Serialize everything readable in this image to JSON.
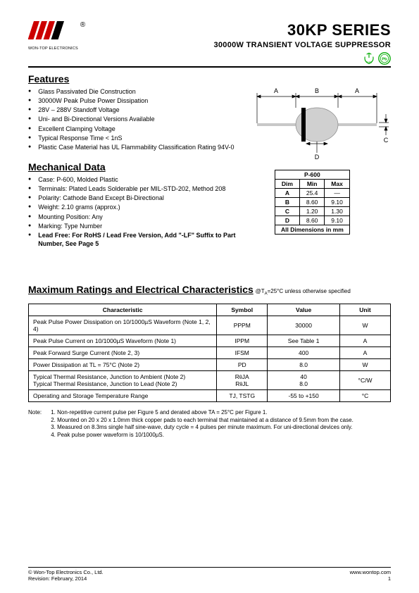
{
  "header": {
    "company": "WON-TOP ELECTRONICS",
    "series": "30KP SERIES",
    "subtitle": "30000W TRANSIENT VOLTAGE SUPPRESSOR",
    "rohs_label": "RoHS",
    "pb_label": "Pb"
  },
  "features": {
    "title": "Features",
    "items": [
      "Glass Passivated Die Construction",
      "30000W Peak Pulse Power Dissipation",
      "28V – 288V Standoff Voltage",
      "Uni- and Bi-Directional Versions Available",
      "Excellent Clamping Voltage",
      "Typical Response Time < 1nS",
      "Plastic Case Material has UL Flammability Classification Rating 94V-0"
    ]
  },
  "mechanical": {
    "title": "Mechanical Data",
    "items": [
      "Case: P-600, Molded Plastic",
      "Terminals: Plated Leads Solderable per MIL-STD-202, Method 208",
      "Polarity: Cathode Band Except Bi-Directional",
      "Weight: 2.10 grams (approx.)",
      "Mounting Position: Any",
      "Marking: Type Number"
    ],
    "leadfree": "Lead Free: For RoHS / Lead Free Version, Add \"-LF\" Suffix to Part Number, See Page 5"
  },
  "dimensions": {
    "package": "P-600",
    "headers": [
      "Dim",
      "Min",
      "Max"
    ],
    "rows": [
      [
        "A",
        "25.4",
        "—"
      ],
      [
        "B",
        "8.60",
        "9.10"
      ],
      [
        "C",
        "1.20",
        "1.30"
      ],
      [
        "D",
        "8.60",
        "9.10"
      ]
    ],
    "footer": "All Dimensions in mm"
  },
  "diagram": {
    "labels": [
      "A",
      "B",
      "A",
      "C",
      "D"
    ],
    "body_color": "#d0d0d0",
    "band_color": "#000000",
    "lead_color": "#c8c8c8",
    "arrow_color": "#000000"
  },
  "maxratings": {
    "title": "Maximum Ratings and Electrical Characteristics",
    "condition": "@TA=25°C unless otherwise specified",
    "headers": [
      "Characteristic",
      "Symbol",
      "Value",
      "Unit"
    ],
    "rows": [
      {
        "char": "Peak Pulse Power Dissipation on 10/1000µS Waveform (Note 1, 2, 4)",
        "sym": "PPPM",
        "val": "30000",
        "unit": "W"
      },
      {
        "char": "Peak Pulse Current on 10/1000µS Waveform (Note 1)",
        "sym": "IPPM",
        "val": "See Table 1",
        "unit": "A"
      },
      {
        "char": "Peak Forward Surge Current (Note 2, 3)",
        "sym": "IFSM",
        "val": "400",
        "unit": "A"
      },
      {
        "char": "Power Dissipation at TL = 75°C (Note 2)",
        "sym": "PD",
        "val": "8.0",
        "unit": "W"
      },
      {
        "char": "Typical Thermal Resistance, Junction to Ambient (Note 2)\nTypical Thermal Resistance, Junction to Lead (Note 2)",
        "sym": "RθJA\nRθJL",
        "val": "40\n8.0",
        "unit": "°C/W"
      },
      {
        "char": "Operating and Storage Temperature Range",
        "sym": "TJ, TSTG",
        "val": "-55 to +150",
        "unit": "°C"
      }
    ]
  },
  "notes": {
    "label": "Note:",
    "items": [
      "1. Non-repetitive current pulse per Figure 5 and derated above TA = 25°C per Figure 1.",
      "2. Mounted on 20 x 20 x 1.0mm thick copper pads to each terminal that maintained at a distance of 9.5mm from the case.",
      "3. Measured on 8.3ms single half sine-wave, duty cycle = 4 pulses per minute maximum. For uni-directional devices only.",
      "4. Peak pulse power waveform is 10/1000µS."
    ]
  },
  "footer": {
    "copyright": "© Won-Top Electronics Co., Ltd.",
    "revision": "Revision: February, 2014",
    "url": "www.wontop.com",
    "page": "1"
  }
}
